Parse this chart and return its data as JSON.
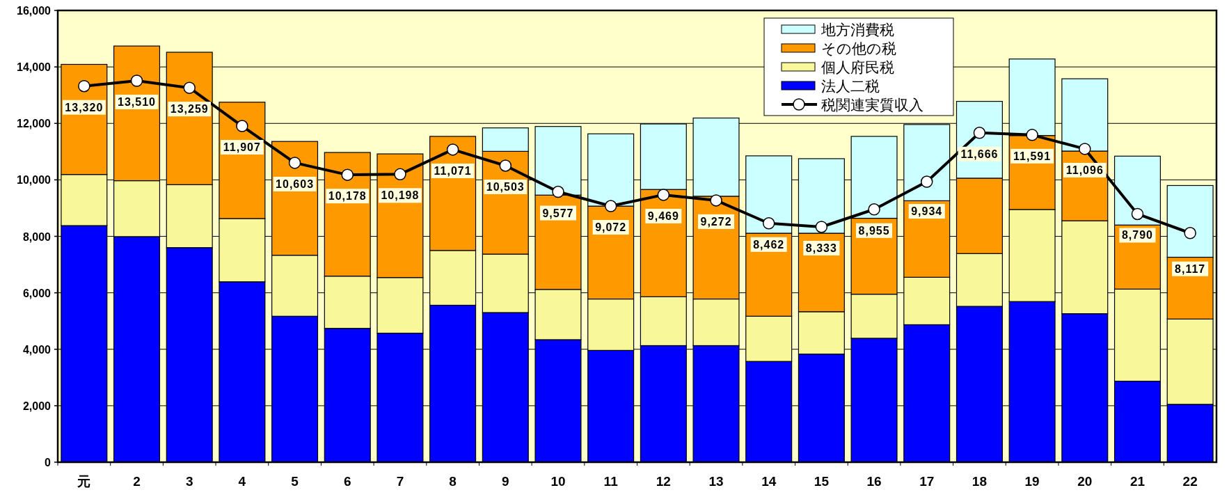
{
  "chart_data": {
    "type": "bar",
    "stacked": true,
    "categories": [
      "元",
      "2",
      "3",
      "4",
      "5",
      "6",
      "7",
      "8",
      "9",
      "10",
      "11",
      "12",
      "13",
      "14",
      "15",
      "16",
      "17",
      "18",
      "19",
      "20",
      "21",
      "22"
    ],
    "series": [
      {
        "name": "法人二税",
        "color": "#0000ff",
        "values": [
          8380,
          7990,
          7600,
          6390,
          5170,
          4740,
          4570,
          5560,
          5300,
          4340,
          3960,
          4130,
          4130,
          3570,
          3830,
          4390,
          4870,
          5520,
          5690,
          5260,
          2870,
          2050
        ]
      },
      {
        "name": "個人府民税",
        "color": "#f8f89a",
        "values": [
          1810,
          1980,
          2230,
          2240,
          2160,
          1850,
          1970,
          1940,
          2070,
          1780,
          1820,
          1730,
          1650,
          1600,
          1500,
          1560,
          1680,
          1870,
          3260,
          3290,
          3260,
          3020
        ]
      },
      {
        "name": "その他の税",
        "color": "#ff9900",
        "values": [
          3900,
          4770,
          4690,
          4120,
          4030,
          4380,
          4380,
          4040,
          3640,
          3340,
          3290,
          3800,
          3640,
          2940,
          2780,
          2690,
          2710,
          2670,
          2620,
          2470,
          2270,
          2190
        ]
      },
      {
        "name": "地方消費税",
        "color": "#ccffff",
        "values": [
          null,
          null,
          null,
          null,
          null,
          null,
          null,
          null,
          830,
          2430,
          2560,
          2320,
          2770,
          2740,
          2640,
          2900,
          2700,
          2720,
          2710,
          2560,
          2440,
          2540
        ]
      },
      {
        "name": "税関連実質収入",
        "type": "line",
        "color": "#000000",
        "marker": "circle",
        "values": [
          13320,
          13510,
          13259,
          11907,
          10603,
          10178,
          10198,
          11071,
          10503,
          9577,
          9072,
          9469,
          9272,
          8462,
          8333,
          8955,
          9934,
          11666,
          11591,
          11096,
          8790,
          8117
        ],
        "value_labels": [
          "13,320",
          "13,510",
          "13,259",
          "11,907",
          "10,603",
          "10,178",
          "10,198",
          "11,071",
          "10,503",
          "9,577",
          "9,072",
          "9,469",
          "9,272",
          "8,462",
          "8,333",
          "8,955",
          "9,934",
          "11,666",
          "11,591",
          "11,096",
          "8,790",
          "8,117"
        ]
      }
    ],
    "ylim": [
      0,
      16000
    ],
    "yticks": [
      {
        "value": 0,
        "label": "0"
      },
      {
        "value": 2000,
        "label": "2,000"
      },
      {
        "value": 4000,
        "label": "4,000"
      },
      {
        "value": 6000,
        "label": "6,000"
      },
      {
        "value": 8000,
        "label": "8,000"
      },
      {
        "value": 10000,
        "label": "10,000"
      },
      {
        "value": 12000,
        "label": "12,000"
      },
      {
        "value": 14000,
        "label": "14,000"
      },
      {
        "value": 16000,
        "label": "16,000"
      }
    ],
    "grid": "y",
    "legend": "top right"
  }
}
